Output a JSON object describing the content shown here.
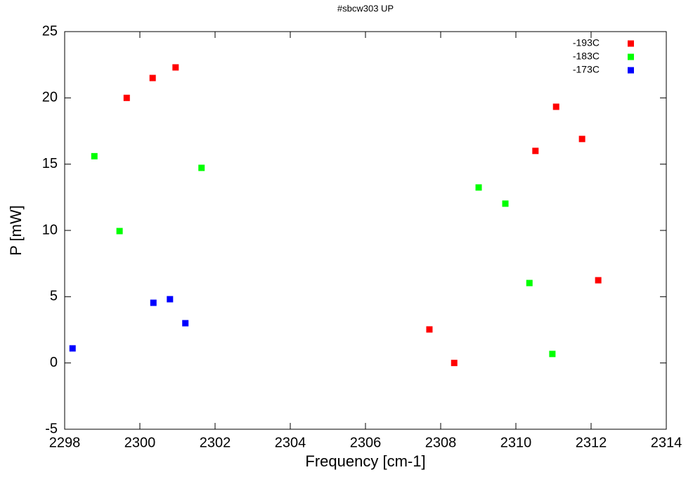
{
  "chart_data": {
    "type": "scatter",
    "title": "#sbcw303 UP",
    "x_label": "Frequency [cm-1]",
    "y_label": "P [mW]",
    "xlim": [
      2298,
      2314
    ],
    "xticks": [
      2298,
      2300,
      2302,
      2304,
      2306,
      2308,
      2310,
      2312,
      2314
    ],
    "ylim": [
      -5,
      25
    ],
    "yticks": [
      -5,
      0,
      5,
      10,
      15,
      20,
      25
    ],
    "grid": false,
    "legend": "top-right",
    "series": [
      {
        "name": "-193C",
        "color": "#ff0000",
        "x": [
          2299.65,
          2300.34,
          2300.95,
          2307.7,
          2308.36,
          2310.52,
          2311.07,
          2311.76,
          2312.19
        ],
        "values": [
          20.0,
          21.5,
          22.3,
          2.53,
          0.0,
          16.0,
          19.33,
          16.9,
          6.24
        ]
      },
      {
        "name": "-183C",
        "color": "#00ff00",
        "x": [
          2298.79,
          2299.46,
          2301.64,
          2309.01,
          2309.72,
          2310.36,
          2310.97
        ],
        "values": [
          15.6,
          9.95,
          14.72,
          13.24,
          12.02,
          6.03,
          0.68
        ]
      },
      {
        "name": "-173C",
        "color": "#0000ff",
        "x": [
          2298.21,
          2300.36,
          2300.8,
          2301.21
        ],
        "values": [
          1.1,
          4.54,
          4.81,
          3.0
        ]
      }
    ]
  }
}
